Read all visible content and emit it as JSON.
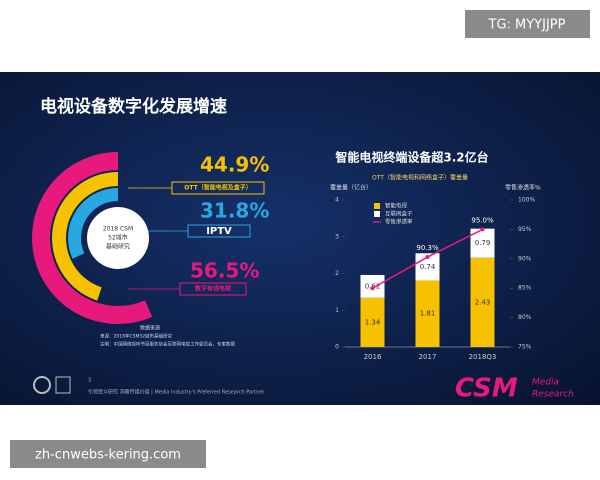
{
  "page": {
    "watermark_top": "TG: MYYJJPP",
    "watermark_bottom": "zh-cnwebs-kering.com",
    "slide_title": "电视设备数字化发展增速",
    "source_title": "数据来源",
    "source_lines": [
      "来源：2018年CSM52城市基础研究",
      "注明：中国网络视听节目服务协会互联网电视工作委员会，专家数据"
    ],
    "page_number": "3",
    "footer": "引领受众研究 洞察传媒价值 | Media Industry's Preferred Research Partner",
    "logo": "CSM",
    "logo_sub": [
      "Media",
      "Research"
    ]
  },
  "chart_data": [
    {
      "type": "radial-bar",
      "center_label": [
        "2018 CSM",
        "52城市",
        "基础研究"
      ],
      "series": [
        {
          "name": "数字有线电视",
          "color": "#e8197c",
          "values": [
            56.5
          ],
          "value_labels": [
            "56.5%"
          ]
        },
        {
          "name": "OTT（智能电视及盒子）",
          "color": "#f6c200",
          "values": [
            44.9
          ],
          "value_labels": [
            "44.9%"
          ]
        },
        {
          "name": "IPTV",
          "color": "#28a8e0",
          "values": [
            31.8
          ],
          "value_labels": [
            "31.8%"
          ]
        }
      ]
    },
    {
      "type": "bar-line",
      "title": "智能电视终端设备超3.2亿台",
      "subtitle": "OTT（智能电视和网络盒子）覆盖量",
      "y_label": "覆盖量（亿台）",
      "y2_label": "零售渗透率%",
      "categories": [
        "2016",
        "2017",
        "2018Q3"
      ],
      "ylim": [
        0,
        4
      ],
      "yticks": [
        0,
        1,
        2,
        3,
        4
      ],
      "y2lim": [
        75,
        100
      ],
      "y2ticks": [
        {
          "value": 75,
          "label": "75%"
        },
        {
          "value": 80,
          "label": "80%"
        },
        {
          "value": 85,
          "label": "85%"
        },
        {
          "value": 90,
          "label": "90%"
        },
        {
          "value": 95,
          "label": "95%"
        },
        {
          "value": 100,
          "label": "100%"
        }
      ],
      "series": [
        {
          "name": "智能电视",
          "color": "#f6c200",
          "values": [
            1.34,
            1.81,
            2.43
          ]
        },
        {
          "name": "互联网盒子",
          "color": "#ffffff",
          "values": [
            0.62,
            0.74,
            0.79
          ]
        },
        {
          "name": "零售渗透率",
          "color": "#e8197c",
          "axis": "y2",
          "values": [
            85,
            90.3,
            95.0
          ],
          "value_labels": [
            null,
            "90.3%",
            "95.0%"
          ]
        }
      ]
    }
  ]
}
